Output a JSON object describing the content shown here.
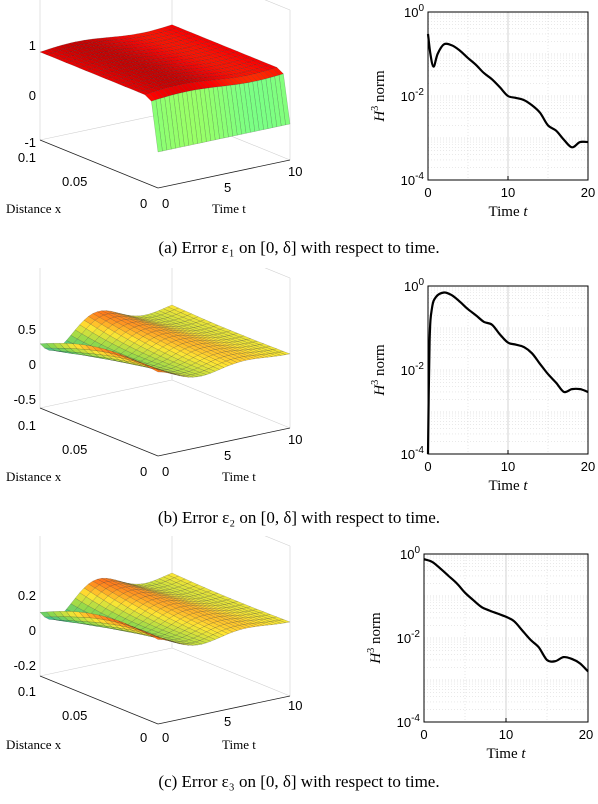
{
  "panels": [
    {
      "caption": "(a) Error ε₁ on [0, δ] with respect to time.",
      "surface": {
        "z_ticks": [
          "1",
          "0",
          "-1"
        ],
        "x_ticks": [
          "0.1",
          "0.05",
          "0"
        ],
        "t_ticks": [
          "0",
          "5",
          "10"
        ],
        "xlabel": "Distance x",
        "tlabel": "Time t",
        "colormap": "jet"
      },
      "norm_plot": {
        "y_ticks": [
          "10^0",
          "10^-2",
          "10^-4"
        ],
        "x_ticks": [
          "0",
          "10",
          "20"
        ],
        "ylabel": "H^3 norm",
        "xlabel": "Time t"
      }
    },
    {
      "caption": "(b) Error ε₂ on [0, δ] with respect to time.",
      "surface": {
        "z_ticks": [
          "0.5",
          "0",
          "-0.5"
        ],
        "x_ticks": [
          "0.1",
          "0.05",
          "0"
        ],
        "t_ticks": [
          "0",
          "5",
          "10"
        ],
        "xlabel": "Distance x",
        "tlabel": "Time t",
        "colormap": "hot-to-cool"
      },
      "norm_plot": {
        "y_ticks": [
          "10^0",
          "10^-2",
          "10^-4"
        ],
        "x_ticks": [
          "0",
          "10",
          "20"
        ],
        "ylabel": "H^3 norm",
        "xlabel": "Time t"
      }
    },
    {
      "caption": "(c) Error ε₃ on [0, δ] with respect to time.",
      "surface": {
        "z_ticks": [
          "0.2",
          "0",
          "-0.2"
        ],
        "x_ticks": [
          "0.1",
          "0.05",
          "0"
        ],
        "t_ticks": [
          "0",
          "5",
          "10"
        ],
        "xlabel": "Distance x",
        "tlabel": "Time t",
        "colormap": "hot-to-cool"
      },
      "norm_plot": {
        "y_ticks": [
          "10^0",
          "10^-2",
          "10^-4"
        ],
        "x_ticks": [
          "0",
          "10",
          "20"
        ],
        "ylabel": "H^3 norm",
        "xlabel": "Time t"
      }
    }
  ],
  "chart_data": [
    {
      "type": "line",
      "title": "",
      "xlabel": "Time t",
      "ylabel": "H^3 norm",
      "yscale": "log",
      "xlim": [
        0,
        20
      ],
      "ylim": [
        0.0001,
        1
      ],
      "grid": true,
      "x": [
        0,
        0.3,
        0.7,
        1.2,
        2,
        3,
        4,
        5,
        6,
        7,
        8,
        9,
        10,
        11,
        12,
        13,
        14,
        15,
        16,
        17,
        18,
        19,
        20
      ],
      "series": [
        {
          "values": [
            0.3,
            0.1,
            0.05,
            0.1,
            0.17,
            0.16,
            0.12,
            0.08,
            0.055,
            0.035,
            0.025,
            0.016,
            0.01,
            0.009,
            0.008,
            0.006,
            0.004,
            0.002,
            0.0015,
            0.0009,
            0.0006,
            0.0008,
            0.0008
          ]
        }
      ]
    },
    {
      "type": "line",
      "title": "",
      "xlabel": "Time t",
      "ylabel": "H^3 norm",
      "yscale": "log",
      "xlim": [
        0,
        20
      ],
      "ylim": [
        0.0001,
        1
      ],
      "grid": true,
      "x": [
        0,
        0.2,
        0.5,
        1,
        2,
        3,
        4,
        5,
        6,
        7,
        8,
        9,
        10,
        11,
        12,
        13,
        14,
        15,
        16,
        17,
        18,
        19,
        20
      ],
      "series": [
        {
          "values": [
            0.0001,
            0.05,
            0.3,
            0.55,
            0.7,
            0.6,
            0.42,
            0.28,
            0.2,
            0.14,
            0.12,
            0.07,
            0.045,
            0.04,
            0.035,
            0.025,
            0.014,
            0.008,
            0.005,
            0.003,
            0.0035,
            0.0035,
            0.003
          ]
        }
      ]
    },
    {
      "type": "line",
      "title": "",
      "xlabel": "Time t",
      "ylabel": "H^3 norm",
      "yscale": "log",
      "xlim": [
        0,
        20
      ],
      "ylim": [
        0.0001,
        1
      ],
      "grid": true,
      "x": [
        0,
        1,
        2,
        3,
        4,
        5,
        6,
        7,
        8,
        9,
        10,
        11,
        12,
        13,
        14,
        15,
        16,
        17,
        18,
        19,
        20
      ],
      "series": [
        {
          "values": [
            0.75,
            0.65,
            0.45,
            0.3,
            0.2,
            0.12,
            0.08,
            0.055,
            0.045,
            0.038,
            0.032,
            0.025,
            0.015,
            0.009,
            0.006,
            0.003,
            0.0028,
            0.0035,
            0.0032,
            0.0025,
            0.0016
          ]
        }
      ]
    }
  ]
}
